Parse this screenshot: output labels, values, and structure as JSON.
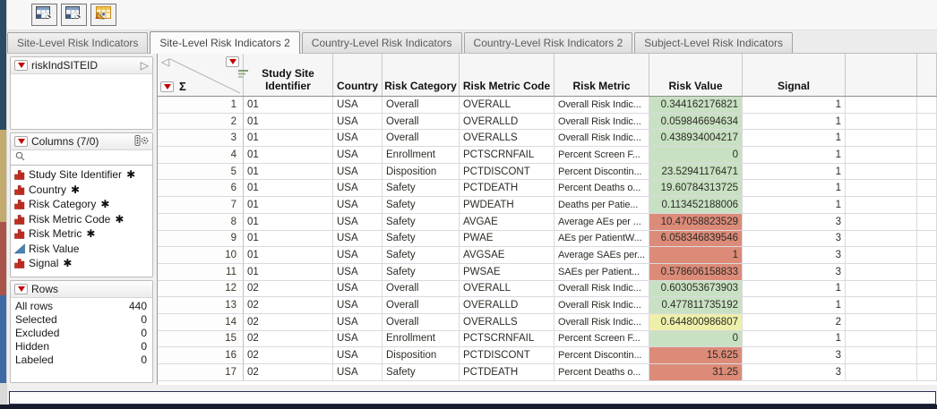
{
  "toolbar": {
    "buttons": [
      {
        "icon": "data-table-icon"
      },
      {
        "icon": "data-table-icon"
      },
      {
        "icon": "edit-table-icon"
      }
    ]
  },
  "tabs": [
    {
      "label": "Site-Level Risk Indicators",
      "active": false
    },
    {
      "label": "Site-Level Risk Indicators 2",
      "active": true
    },
    {
      "label": "Country-Level Risk Indicators",
      "active": false
    },
    {
      "label": "Country-Level Risk Indicators 2",
      "active": false
    },
    {
      "label": "Subject-Level Risk Indicators",
      "active": false
    }
  ],
  "sidebar": {
    "table_panel": {
      "title": "riskIndSITEID",
      "expand_glyph": "▷"
    },
    "columns_panel": {
      "title": "Columns (7/0)",
      "items": [
        {
          "label": "Study Site Identifier",
          "type": "nominal",
          "asterisk": true
        },
        {
          "label": "Country",
          "type": "nominal",
          "asterisk": true
        },
        {
          "label": "Risk Category",
          "type": "nominal",
          "asterisk": true
        },
        {
          "label": "Risk Metric Code",
          "type": "nominal",
          "asterisk": true
        },
        {
          "label": "Risk Metric",
          "type": "nominal",
          "asterisk": true
        },
        {
          "label": "Risk Value",
          "type": "continuous",
          "asterisk": false
        },
        {
          "label": "Signal",
          "type": "nominal",
          "asterisk": true
        }
      ]
    },
    "rows_panel": {
      "title": "Rows",
      "stats": [
        {
          "label": "All rows",
          "value": "440"
        },
        {
          "label": "Selected",
          "value": "0"
        },
        {
          "label": "Excluded",
          "value": "0"
        },
        {
          "label": "Hidden",
          "value": "0"
        },
        {
          "label": "Labeled",
          "value": "0"
        }
      ]
    }
  },
  "table": {
    "corner": {
      "sigma": "Σ",
      "collapse_glyph": "◁"
    },
    "columns": [
      "Study Site Identifier",
      "Country",
      "Risk Category",
      "Risk Metric Code",
      "Risk Metric",
      "Risk Value",
      "Signal"
    ],
    "rows": [
      {
        "n": "1",
        "site": "01",
        "country": "USA",
        "category": "Overall",
        "code": "OVERALL",
        "metric": "Overall Risk Indic...",
        "value": "0.344162176821",
        "color": "green",
        "signal": "1"
      },
      {
        "n": "2",
        "site": "01",
        "country": "USA",
        "category": "Overall",
        "code": "OVERALLD",
        "metric": "Overall Risk Indic...",
        "value": "0.059846694634",
        "color": "green",
        "signal": "1"
      },
      {
        "n": "3",
        "site": "01",
        "country": "USA",
        "category": "Overall",
        "code": "OVERALLS",
        "metric": "Overall Risk Indic...",
        "value": "0.438934004217",
        "color": "green",
        "signal": "1"
      },
      {
        "n": "4",
        "site": "01",
        "country": "USA",
        "category": "Enrollment",
        "code": "PCTSCRNFAIL",
        "metric": "Percent Screen F...",
        "value": "0",
        "color": "green",
        "signal": "1"
      },
      {
        "n": "5",
        "site": "01",
        "country": "USA",
        "category": "Disposition",
        "code": "PCTDISCONT",
        "metric": "Percent Discontin...",
        "value": "23.52941176471",
        "color": "green",
        "signal": "1"
      },
      {
        "n": "6",
        "site": "01",
        "country": "USA",
        "category": "Safety",
        "code": "PCTDEATH",
        "metric": "Percent Deaths o...",
        "value": "19.60784313725",
        "color": "green",
        "signal": "1"
      },
      {
        "n": "7",
        "site": "01",
        "country": "USA",
        "category": "Safety",
        "code": "PWDEATH",
        "metric": "Deaths per Patie...",
        "value": "0.113452188006",
        "color": "green",
        "signal": "1"
      },
      {
        "n": "8",
        "site": "01",
        "country": "USA",
        "category": "Safety",
        "code": "AVGAE",
        "metric": "Average AEs per ...",
        "value": "10.47058823529",
        "color": "red",
        "signal": "3"
      },
      {
        "n": "9",
        "site": "01",
        "country": "USA",
        "category": "Safety",
        "code": "PWAE",
        "metric": "AEs per PatientW...",
        "value": "6.058346839546",
        "color": "red",
        "signal": "3"
      },
      {
        "n": "10",
        "site": "01",
        "country": "USA",
        "category": "Safety",
        "code": "AVGSAE",
        "metric": "Average SAEs per...",
        "value": "1",
        "color": "red",
        "signal": "3"
      },
      {
        "n": "11",
        "site": "01",
        "country": "USA",
        "category": "Safety",
        "code": "PWSAE",
        "metric": "SAEs per Patient...",
        "value": "0.578606158833",
        "color": "red",
        "signal": "3"
      },
      {
        "n": "12",
        "site": "02",
        "country": "USA",
        "category": "Overall",
        "code": "OVERALL",
        "metric": "Overall Risk Indic...",
        "value": "0.603053673903",
        "color": "green",
        "signal": "1"
      },
      {
        "n": "13",
        "site": "02",
        "country": "USA",
        "category": "Overall",
        "code": "OVERALLD",
        "metric": "Overall Risk Indic...",
        "value": "0.477811735192",
        "color": "green",
        "signal": "1"
      },
      {
        "n": "14",
        "site": "02",
        "country": "USA",
        "category": "Overall",
        "code": "OVERALLS",
        "metric": "Overall Risk Indic...",
        "value": "0.644800986807",
        "color": "yellow",
        "signal": "2"
      },
      {
        "n": "15",
        "site": "02",
        "country": "USA",
        "category": "Enrollment",
        "code": "PCTSCRNFAIL",
        "metric": "Percent Screen F...",
        "value": "0",
        "color": "green",
        "signal": "1"
      },
      {
        "n": "16",
        "site": "02",
        "country": "USA",
        "category": "Disposition",
        "code": "PCTDISCONT",
        "metric": "Percent Discontin...",
        "value": "15.625",
        "color": "red",
        "signal": "3"
      },
      {
        "n": "17",
        "site": "02",
        "country": "USA",
        "category": "Safety",
        "code": "PCTDEATH",
        "metric": "Percent Deaths o...",
        "value": "31.25",
        "color": "red",
        "signal": "3"
      }
    ]
  },
  "icons": {
    "asterisk": "✱"
  },
  "colors": {
    "green": "#c9e1c3",
    "red": "#dd8b79",
    "yellow": "#eef0aa",
    "red_triangle": "#c40000"
  }
}
